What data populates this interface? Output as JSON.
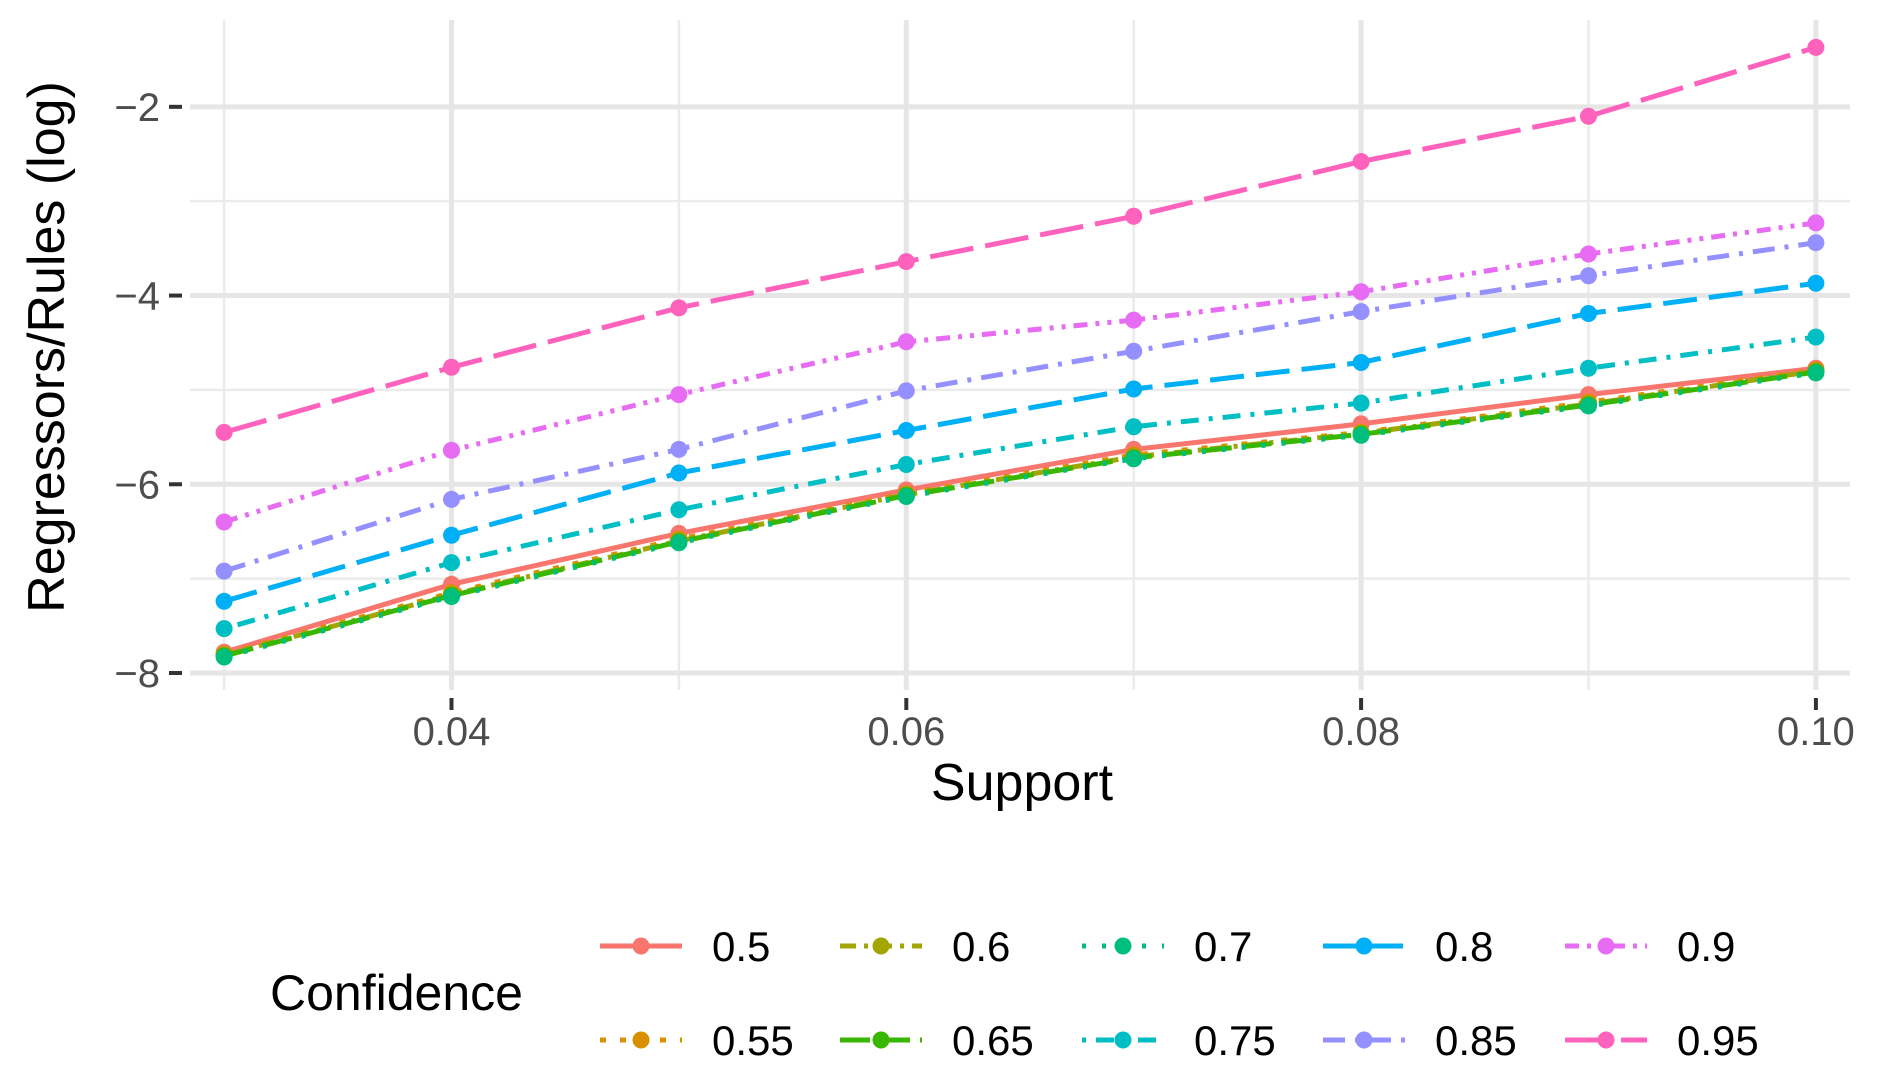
{
  "chart_data": {
    "type": "line",
    "title": "",
    "xlabel": "Support",
    "ylabel": "Regressors/Rules (log)",
    "x": [
      0.03,
      0.04,
      0.05,
      0.06,
      0.07,
      0.08,
      0.09,
      0.1
    ],
    "xlim": [
      0.0285,
      0.1015
    ],
    "ylim": [
      -8.18,
      -1.08
    ],
    "x_ticks": [
      0.04,
      0.06,
      0.08,
      0.1
    ],
    "x_tick_labels": [
      "0.04",
      "0.06",
      "0.08",
      "0.10"
    ],
    "x_minor_ticks": [
      0.03,
      0.05,
      0.07,
      0.09
    ],
    "y_ticks": [
      -8,
      -6,
      -4,
      -2
    ],
    "y_tick_labels": [
      "−8",
      "−6",
      "−4",
      "−2"
    ],
    "y_minor_ticks": [
      -7,
      -5,
      -3
    ],
    "grid": true,
    "legend": {
      "title": "Confidence",
      "position": "bottom"
    },
    "series": [
      {
        "name": "0.5",
        "color": "#F8766D",
        "dash": "solid",
        "values": [
          -7.78,
          -7.06,
          -6.52,
          -6.06,
          -5.63,
          -5.36,
          -5.05,
          -4.77
        ]
      },
      {
        "name": "0.55",
        "color": "#D89000",
        "dash": "dotted",
        "values": [
          -7.8,
          -7.15,
          -6.58,
          -6.1,
          -5.69,
          -5.45,
          -5.13,
          -4.79
        ]
      },
      {
        "name": "0.6",
        "color": "#A3A500",
        "dash": "dashdot",
        "values": [
          -7.81,
          -7.17,
          -6.6,
          -6.11,
          -5.71,
          -5.46,
          -5.15,
          -4.8
        ]
      },
      {
        "name": "0.65",
        "color": "#39B600",
        "dash": "longdash",
        "values": [
          -7.82,
          -7.18,
          -6.61,
          -6.12,
          -5.72,
          -5.47,
          -5.16,
          -4.81
        ]
      },
      {
        "name": "0.7",
        "color": "#00BF7D",
        "dash": "dotted2",
        "values": [
          -7.83,
          -7.19,
          -6.62,
          -6.13,
          -5.73,
          -5.48,
          -5.17,
          -4.82
        ]
      },
      {
        "name": "0.75",
        "color": "#00BFC4",
        "dash": "dotdash",
        "values": [
          -7.53,
          -6.83,
          -6.27,
          -5.79,
          -5.39,
          -5.14,
          -4.77,
          -4.44
        ]
      },
      {
        "name": "0.8",
        "color": "#00B0F6",
        "dash": "longdash2",
        "values": [
          -7.24,
          -6.54,
          -5.88,
          -5.43,
          -4.99,
          -4.71,
          -4.19,
          -3.87
        ]
      },
      {
        "name": "0.85",
        "color": "#9590FF",
        "dash": "dashdot2",
        "values": [
          -6.92,
          -6.16,
          -5.63,
          -5.01,
          -4.59,
          -4.17,
          -3.79,
          -3.44
        ]
      },
      {
        "name": "0.9",
        "color": "#E76BF3",
        "dash": "dashdotdot",
        "values": [
          -6.4,
          -5.64,
          -5.05,
          -4.49,
          -4.26,
          -3.96,
          -3.56,
          -3.23
        ]
      },
      {
        "name": "0.95",
        "color": "#FF62BC",
        "dash": "longdash3",
        "values": [
          -5.45,
          -4.76,
          -4.13,
          -3.64,
          -3.16,
          -2.58,
          -2.1,
          -1.37
        ]
      }
    ]
  }
}
